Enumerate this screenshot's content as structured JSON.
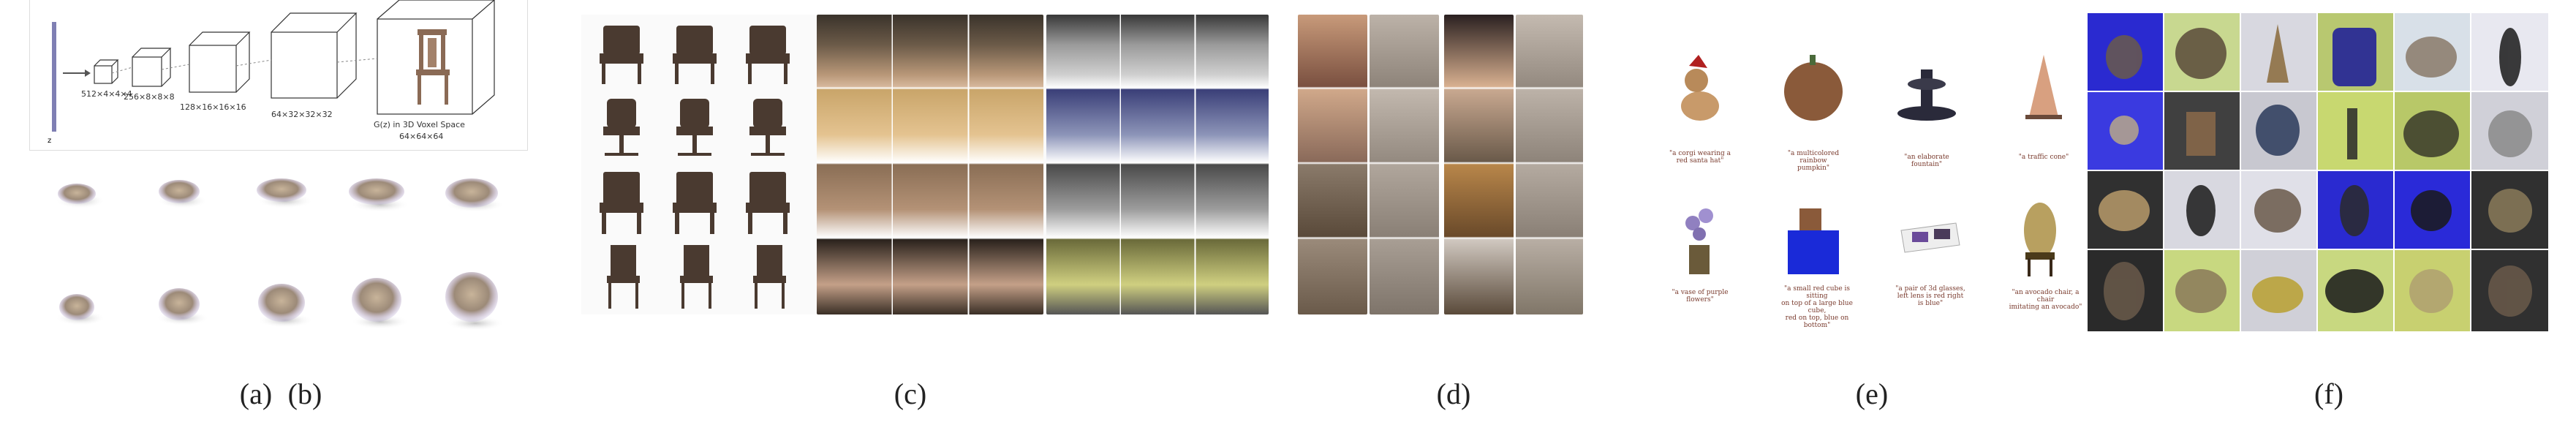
{
  "captions": [
    "(a)",
    "(b)",
    "(c)",
    "(d)",
    "(e)",
    "(f)"
  ],
  "panel_a": {
    "labels": [
      "512×4×4×4",
      "256×8×8×8",
      "128×16×16×16",
      "64×32×32×32",
      "G(z) in 3D Voxel Space",
      "64×64×64"
    ],
    "z_label": "z"
  },
  "panel_e": {
    "prompts": [
      "\"a corgi wearing a\nred santa hat\"",
      "\"a multicolored rainbow\npumpkin\"",
      "\"an elaborate fountain\"",
      "\"a traffic cone\"",
      "\"a vase of purple flowers\"",
      "\"a small red cube is sitting\non top of a large blue cube,\nred on top, blue on bottom\"",
      "\"a pair of 3d glasses,\nleft lens is red right\nis blue\"",
      "\"an avocado chair, a chair\nimitating an avocado\""
    ]
  },
  "colors": {
    "accent_line": "#7f7fb3",
    "caption": "#222222"
  }
}
